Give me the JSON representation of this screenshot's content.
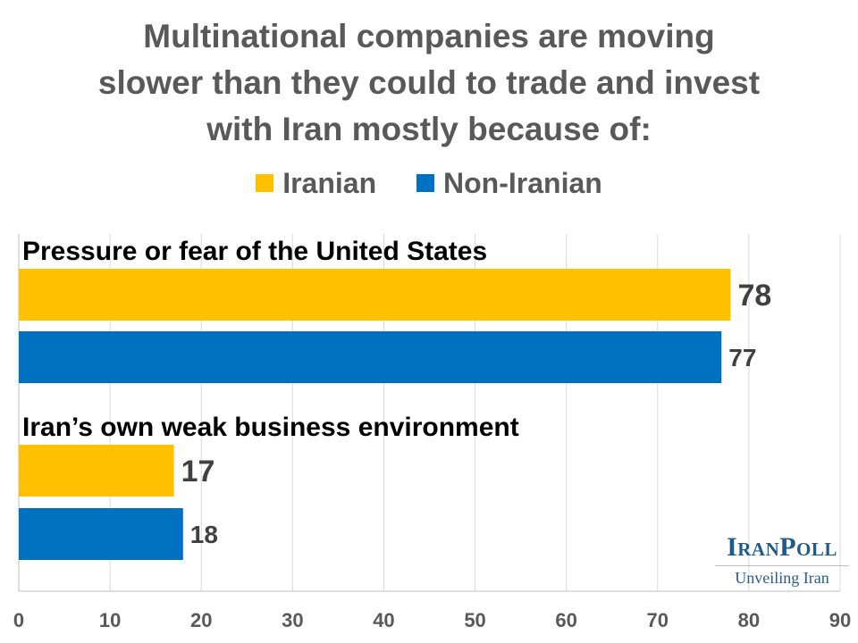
{
  "chart_data": {
    "type": "bar",
    "orientation": "horizontal",
    "title_lines": [
      "Multinational companies are moving",
      "slower than they could to trade and invest",
      "with Iran mostly because of:"
    ],
    "categories": [
      "Pressure or fear of the United States",
      "Iran’s own weak business environment"
    ],
    "series": [
      {
        "name": "Iranian",
        "color": "#FFC000",
        "values": [
          78,
          17
        ]
      },
      {
        "name": "Non-Iranian",
        "color": "#0070C0",
        "values": [
          77,
          18
        ]
      }
    ],
    "xlim": [
      0,
      90
    ],
    "xticks": [
      "0",
      "10",
      "20",
      "30",
      "40",
      "50",
      "60",
      "70",
      "80",
      "90"
    ],
    "grid": true,
    "legend_position": "top"
  },
  "branding": {
    "logo_name": "IranPoll",
    "logo_tagline": "Unveiling Iran"
  }
}
